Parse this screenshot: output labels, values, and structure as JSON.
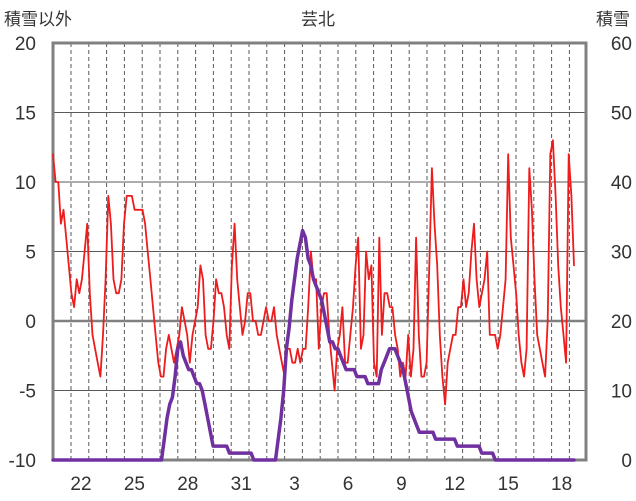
{
  "chart_data": {
    "type": "line",
    "title": "芸北",
    "left_axis_label": "積雪以外",
    "right_axis_label": "積雪",
    "y_left": {
      "min": -10,
      "max": 20,
      "ticks": [
        20,
        15,
        10,
        5,
        0,
        -5,
        -10
      ]
    },
    "y_right": {
      "min": 0,
      "max": 60,
      "ticks": [
        60,
        50,
        40,
        30,
        20,
        10,
        0
      ]
    },
    "x_tick_labels": [
      "22",
      "25",
      "28",
      "31",
      "3",
      "6",
      "9",
      "12",
      "15",
      "18"
    ],
    "colors": {
      "red_series": "#ee1c1c",
      "purple_series": "#7030a0",
      "frame": "#808080",
      "grid": "#595959"
    },
    "series": [
      {
        "axis": "left",
        "values": [
          12,
          10,
          10,
          7,
          8,
          6,
          4,
          2,
          1,
          3,
          2,
          3,
          5,
          7,
          2,
          -1,
          -2,
          -3,
          -4,
          -1,
          3,
          9,
          7,
          3,
          2,
          2,
          3,
          7,
          9,
          9,
          9,
          8,
          8,
          8,
          8,
          7,
          5,
          3,
          1,
          -1,
          -3,
          -4,
          -4,
          -2,
          -1,
          -2,
          -3,
          -2,
          -1,
          1,
          0,
          -1,
          -3,
          -1,
          0,
          1,
          4,
          3,
          -1,
          -2,
          -2,
          0,
          3,
          2,
          2,
          1,
          -1,
          -2,
          4,
          7,
          3,
          1,
          -1,
          0,
          2,
          2,
          0,
          0,
          -1,
          -1,
          0,
          1,
          0,
          0,
          1,
          -1,
          -2,
          -3,
          -4,
          -2,
          -2,
          -3,
          -3,
          -2,
          -3,
          -2,
          -2,
          1,
          5,
          3,
          3,
          -2,
          1,
          2,
          2,
          -1,
          -3,
          -5,
          -2,
          -1,
          1,
          -3,
          -3,
          -1,
          1,
          4,
          6,
          -2,
          -1,
          5,
          3,
          4,
          -3,
          -4,
          6,
          -1,
          2,
          2,
          1,
          1,
          -1,
          -2,
          -4,
          -3,
          -4,
          -1,
          -4,
          -2,
          6,
          -1,
          -4,
          -4,
          -3,
          4,
          11,
          7,
          4,
          -1,
          -4,
          -6,
          -3,
          -2,
          -1,
          -1,
          1,
          1,
          3,
          1,
          2,
          5,
          7,
          3,
          1,
          2,
          3,
          5,
          -1,
          -1,
          -1,
          -2,
          -1,
          1,
          3,
          12,
          6,
          4,
          2,
          -1,
          -3,
          -4,
          -2,
          11,
          8,
          3,
          -1,
          -2,
          -3,
          -4,
          0,
          12,
          13,
          9,
          4,
          1,
          -1,
          -3,
          12,
          9,
          4
        ],
        "smooth": false
      },
      {
        "axis": "right",
        "values": [
          0,
          0,
          0,
          0,
          0,
          0,
          0,
          0,
          0,
          0,
          0,
          0,
          0,
          0,
          0,
          0,
          0,
          0,
          0,
          0,
          0,
          0,
          0,
          0,
          0,
          0,
          0,
          0,
          0,
          0,
          0,
          0,
          0,
          0,
          0,
          0,
          0,
          0,
          0,
          0,
          0,
          3,
          6,
          8,
          9,
          12,
          16,
          17,
          15,
          14,
          13,
          13,
          12,
          11,
          11,
          10,
          8,
          6,
          4,
          2,
          2,
          2,
          2,
          2,
          2,
          1,
          1,
          1,
          1,
          1,
          1,
          1,
          1,
          1,
          0,
          0,
          0,
          0,
          0,
          0,
          0,
          0,
          0,
          3,
          6,
          10,
          16,
          19,
          23,
          26,
          29,
          31,
          33,
          32,
          29,
          28,
          26,
          25,
          24,
          23,
          21,
          19,
          17,
          17,
          16,
          16,
          15,
          14,
          13,
          13,
          13,
          13,
          12,
          12,
          12,
          12,
          11,
          11,
          11,
          11,
          11,
          13,
          14,
          15,
          16,
          16,
          16,
          15,
          14,
          13,
          11,
          9,
          7,
          6,
          5,
          4,
          4,
          4,
          4,
          4,
          4,
          3,
          3,
          3,
          3,
          3,
          3,
          3,
          3,
          2,
          2,
          2,
          2,
          2,
          2,
          2,
          2,
          2,
          1,
          1,
          1,
          1,
          1,
          0,
          0,
          0,
          0,
          0,
          0,
          0,
          0,
          0,
          0,
          0,
          0,
          0,
          0,
          0,
          0,
          0,
          0,
          0,
          0,
          0,
          0,
          0,
          0,
          0,
          0,
          0,
          0,
          0,
          0
        ],
        "smooth": false
      }
    ]
  }
}
